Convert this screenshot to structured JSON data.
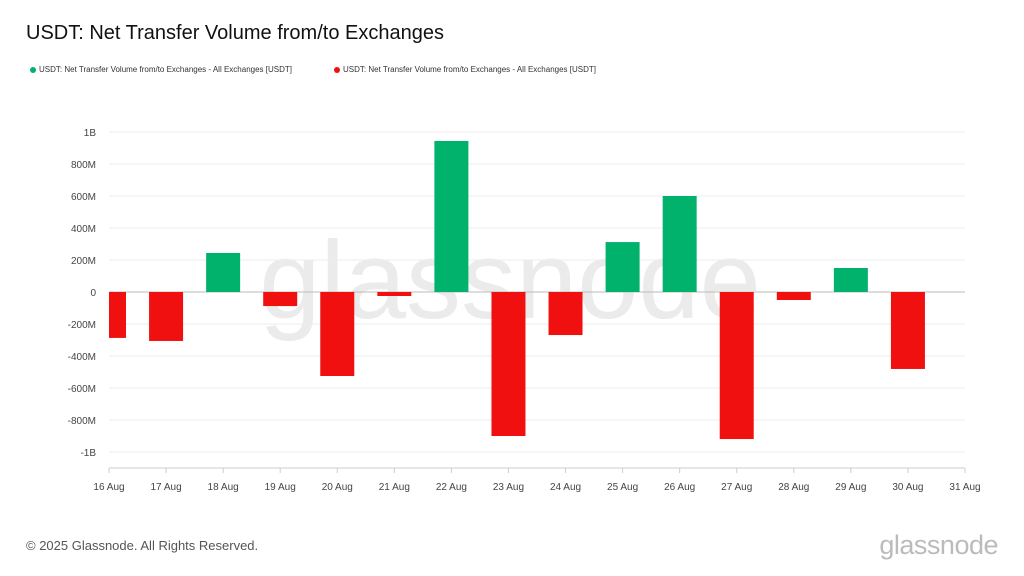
{
  "chart_data": {
    "type": "bar",
    "title": "USDT: Net Transfer Volume from/to Exchanges",
    "legend": [
      {
        "name": "USDT: Net Transfer Volume from/to Exchanges - All Exchanges [USDT]",
        "color": "#00b26b"
      },
      {
        "name": "USDT: Net Transfer Volume from/to Exchanges - All Exchanges [USDT]",
        "color": "#f01010"
      }
    ],
    "legend_placement": "top-left",
    "categories": [
      "16 Aug",
      "17 Aug",
      "18 Aug",
      "19 Aug",
      "20 Aug",
      "21 Aug",
      "22 Aug",
      "23 Aug",
      "24 Aug",
      "25 Aug",
      "26 Aug",
      "27 Aug",
      "28 Aug",
      "29 Aug",
      "30 Aug"
    ],
    "x_tick_labels": [
      "16 Aug",
      "17 Aug",
      "18 Aug",
      "19 Aug",
      "20 Aug",
      "21 Aug",
      "22 Aug",
      "23 Aug",
      "24 Aug",
      "25 Aug",
      "26 Aug",
      "27 Aug",
      "28 Aug",
      "29 Aug",
      "30 Aug",
      "31 Aug"
    ],
    "values": [
      -287000000,
      -306000000,
      244000000,
      -88000000,
      -525000000,
      -25000000,
      944000000,
      -900000000,
      -269000000,
      312000000,
      600000000,
      -919000000,
      -50000000,
      150000000,
      -481000000
    ],
    "ylim": [
      -1000000000,
      1000000000
    ],
    "y_ticks": [
      1000000000,
      800000000,
      600000000,
      400000000,
      200000000,
      0,
      -200000000,
      -400000000,
      -600000000,
      -800000000,
      -1000000000
    ],
    "y_tick_labels": [
      "1B",
      "800M",
      "600M",
      "400M",
      "200M",
      "0",
      "-200M",
      "-400M",
      "-600M",
      "-800M",
      "-1B"
    ],
    "positive_color": "#00b26b",
    "negative_color": "#f01010",
    "grid": true,
    "xlabel": "",
    "ylabel": ""
  },
  "watermark": "glassnode",
  "footer": {
    "copyright": "© 2025 Glassnode. All Rights Reserved.",
    "logo": "glassnode"
  }
}
